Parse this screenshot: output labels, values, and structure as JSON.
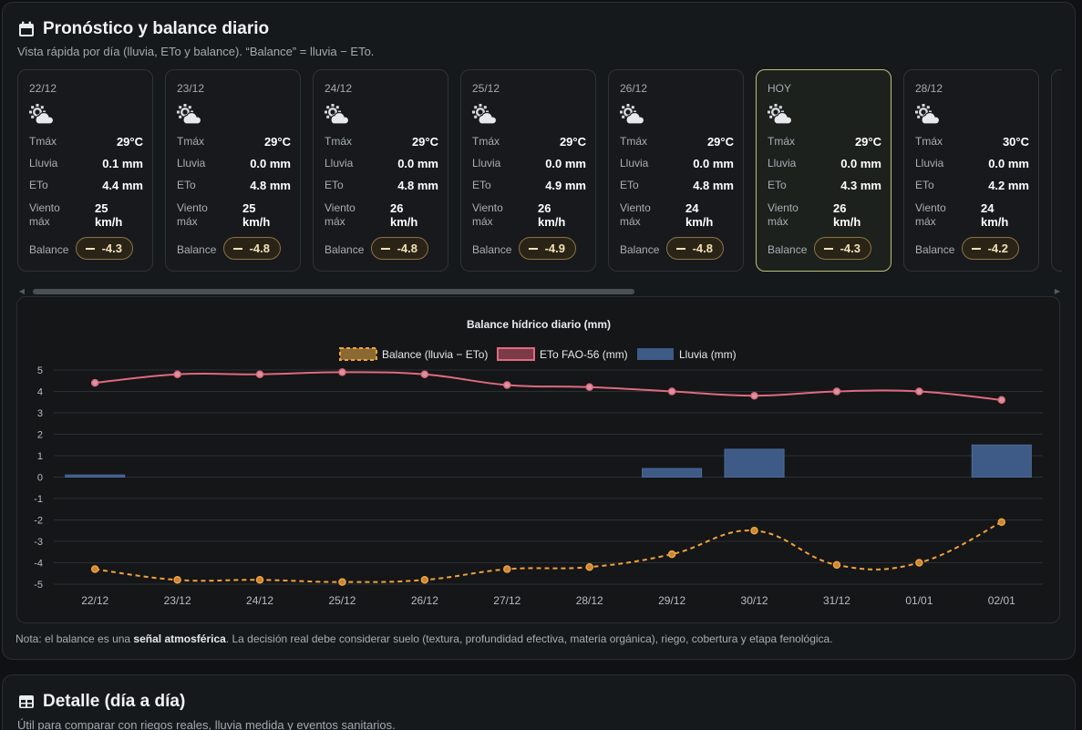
{
  "forecast": {
    "title": "Pronóstico y balance diario",
    "subtitle": "Vista rápida por día (lluvia, ETo y balance). “Balance” = lluvia − ETo.",
    "labels": {
      "tmax": "Tmáx",
      "rain": "Lluvia",
      "eto": "ETo",
      "wind": "Viento máx",
      "balance": "Balance"
    },
    "cards": [
      {
        "date": "22/12",
        "tmax": "29°C",
        "rain": "0.1 mm",
        "eto": "4.4 mm",
        "wind": "25 km/h",
        "balance": "-4.3",
        "today": false
      },
      {
        "date": "23/12",
        "tmax": "29°C",
        "rain": "0.0 mm",
        "eto": "4.8 mm",
        "wind": "25 km/h",
        "balance": "-4.8",
        "today": false
      },
      {
        "date": "24/12",
        "tmax": "29°C",
        "rain": "0.0 mm",
        "eto": "4.8 mm",
        "wind": "26 km/h",
        "balance": "-4.8",
        "today": false
      },
      {
        "date": "25/12",
        "tmax": "29°C",
        "rain": "0.0 mm",
        "eto": "4.9 mm",
        "wind": "26 km/h",
        "balance": "-4.9",
        "today": false
      },
      {
        "date": "26/12",
        "tmax": "29°C",
        "rain": "0.0 mm",
        "eto": "4.8 mm",
        "wind": "24 km/h",
        "balance": "-4.8",
        "today": false
      },
      {
        "date": "HOY",
        "tmax": "29°C",
        "rain": "0.0 mm",
        "eto": "4.3 mm",
        "wind": "26 km/h",
        "balance": "-4.3",
        "today": true
      },
      {
        "date": "28/12",
        "tmax": "30°C",
        "rain": "0.0 mm",
        "eto": "4.2 mm",
        "wind": "24 km/h",
        "balance": "-4.2",
        "today": false
      }
    ],
    "note_prefix": "Nota: el balance es una ",
    "note_bold": "señal atmosférica",
    "note_suffix": ". La decisión real debe considerar suelo (textura, profundidad efectiva, materia orgánica), riego, cobertura y etapa fenológica."
  },
  "chart_data": {
    "type": "line",
    "title": "Balance hídrico diario (mm)",
    "categories": [
      "22/12",
      "23/12",
      "24/12",
      "25/12",
      "26/12",
      "27/12",
      "28/12",
      "29/12",
      "30/12",
      "31/12",
      "01/01",
      "02/01"
    ],
    "series": [
      {
        "name": "Balance (lluvia − ETo)",
        "kind": "line-dashed",
        "color": "#f0a23c",
        "values": [
          -4.3,
          -4.8,
          -4.8,
          -4.9,
          -4.8,
          -4.3,
          -4.2,
          -3.6,
          -2.5,
          -4.1,
          -4.0,
          -2.1
        ]
      },
      {
        "name": "ETo FAO-56 (mm)",
        "kind": "line",
        "color": "#e06a7e",
        "values": [
          4.4,
          4.8,
          4.8,
          4.9,
          4.8,
          4.3,
          4.2,
          4.0,
          3.8,
          4.0,
          4.0,
          3.6
        ]
      },
      {
        "name": "Lluvia (mm)",
        "kind": "bar",
        "color": "#3e5a86",
        "values": [
          0.1,
          0.0,
          0.0,
          0.0,
          0.0,
          0.0,
          0.0,
          0.4,
          1.3,
          0.0,
          0.0,
          1.5
        ]
      }
    ],
    "ylim": [
      -5,
      5
    ],
    "yticks": [
      5,
      4,
      3,
      2,
      1,
      0,
      -1,
      -2,
      -3,
      -4,
      -5
    ],
    "grid": true,
    "legend": "top-center"
  },
  "detail": {
    "title": "Detalle (día a día)",
    "subtitle": "Útil para comparar con riegos reales, lluvia medida y eventos sanitarios."
  },
  "colors": {
    "accent_today": "#b6c17a",
    "balance_pill": "#8a7344"
  }
}
